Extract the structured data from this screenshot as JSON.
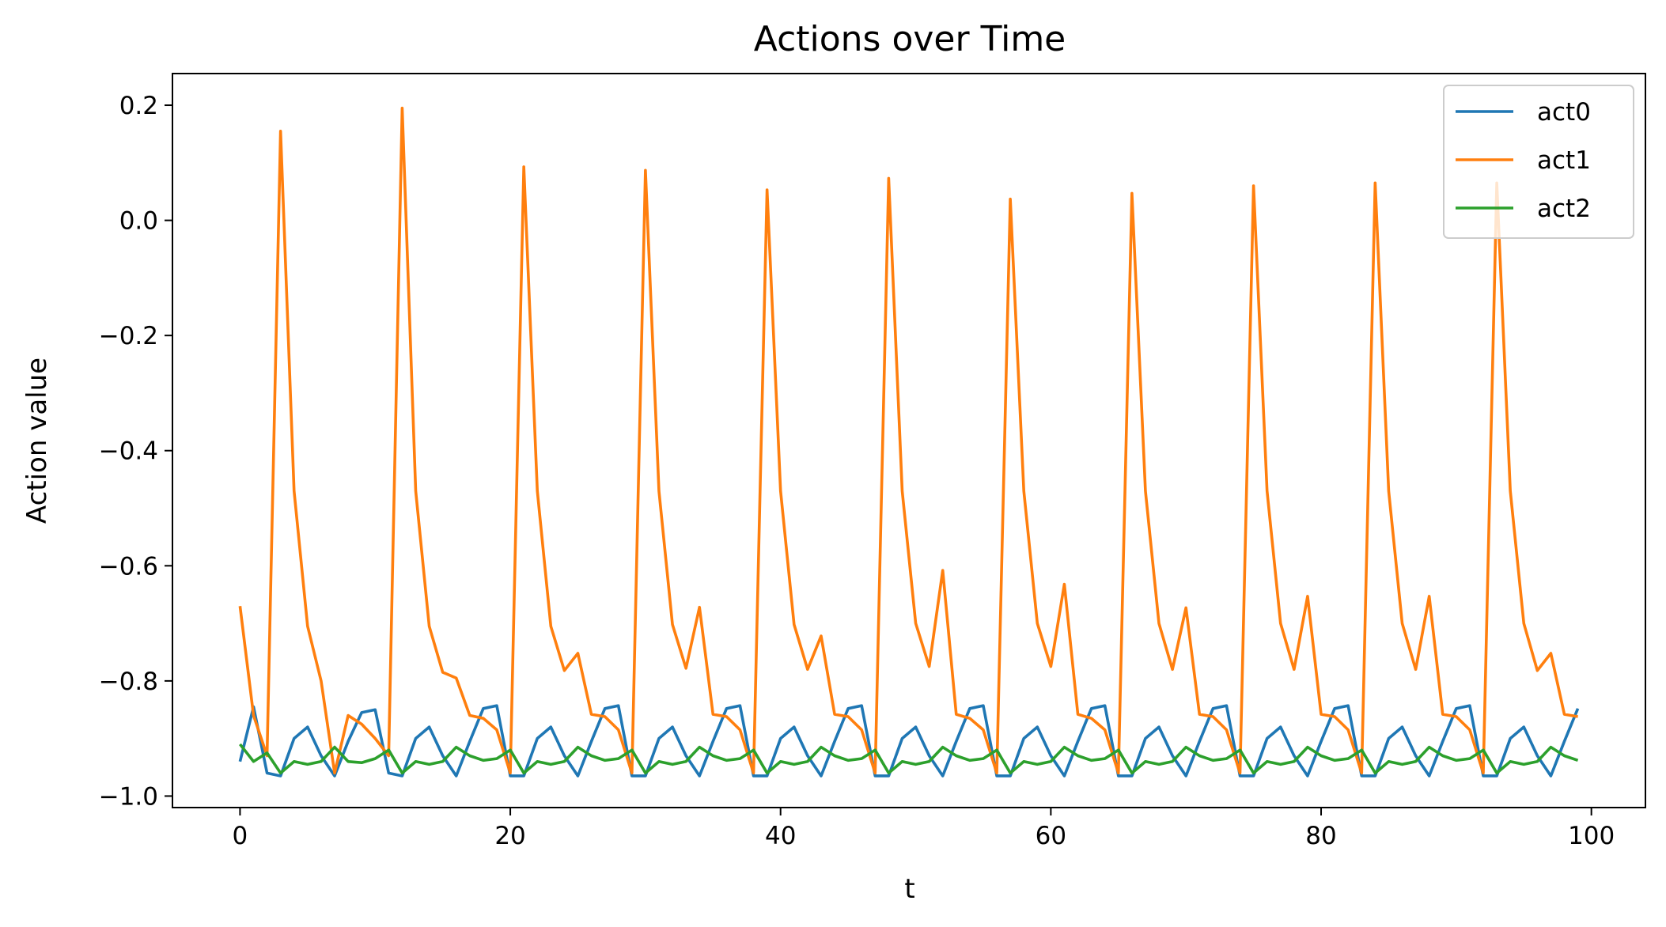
{
  "chart_data": {
    "type": "line",
    "title": "Actions over Time",
    "xlabel": "t",
    "ylabel": "Action value",
    "xlim": [
      -5,
      104
    ],
    "ylim": [
      -1.02,
      0.255
    ],
    "xticks": [
      0,
      20,
      40,
      60,
      80,
      100
    ],
    "yticks": [
      0.2,
      0.0,
      -0.2,
      -0.4,
      -0.6,
      -0.8,
      -1.0
    ],
    "xtick_labels": [
      "0",
      "20",
      "40",
      "60",
      "80",
      "100"
    ],
    "ytick_labels": [
      "0.2",
      "0.0",
      "−0.2",
      "−0.4",
      "−0.6",
      "−0.8",
      "−1.0"
    ],
    "legend_position": "top-right",
    "grid": false,
    "series": [
      {
        "name": "act0",
        "color": "#1f77b4",
        "values": [
          -0.94,
          -0.845,
          -0.96,
          -0.965,
          -0.9,
          -0.88,
          -0.93,
          -0.965,
          -0.905,
          -0.855,
          -0.85,
          -0.96,
          -0.965,
          -0.9,
          -0.88,
          -0.93,
          -0.965,
          -0.905,
          -0.848,
          -0.843,
          -0.965,
          -0.965,
          -0.9,
          -0.88,
          -0.93,
          -0.965,
          -0.905,
          -0.848,
          -0.843,
          -0.965,
          -0.965,
          -0.9,
          -0.88,
          -0.93,
          -0.965,
          -0.905,
          -0.848,
          -0.843,
          -0.965,
          -0.965,
          -0.9,
          -0.88,
          -0.93,
          -0.965,
          -0.905,
          -0.848,
          -0.843,
          -0.965,
          -0.965,
          -0.9,
          -0.88,
          -0.93,
          -0.965,
          -0.905,
          -0.848,
          -0.843,
          -0.965,
          -0.965,
          -0.9,
          -0.88,
          -0.93,
          -0.965,
          -0.905,
          -0.848,
          -0.843,
          -0.965,
          -0.965,
          -0.9,
          -0.88,
          -0.93,
          -0.965,
          -0.905,
          -0.848,
          -0.843,
          -0.965,
          -0.965,
          -0.9,
          -0.88,
          -0.93,
          -0.965,
          -0.905,
          -0.848,
          -0.843,
          -0.965,
          -0.965,
          -0.9,
          -0.88,
          -0.93,
          -0.965,
          -0.905,
          -0.848,
          -0.843,
          -0.965,
          -0.965,
          -0.9,
          -0.88,
          -0.93,
          -0.965,
          -0.905,
          -0.848
        ]
      },
      {
        "name": "act1",
        "color": "#ff7f0e",
        "values": [
          -0.67,
          -0.86,
          -0.93,
          0.155,
          -0.47,
          -0.705,
          -0.8,
          -0.96,
          -0.86,
          -0.875,
          -0.9,
          -0.93,
          0.195,
          -0.47,
          -0.705,
          -0.785,
          -0.795,
          -0.86,
          -0.865,
          -0.885,
          -0.96,
          0.093,
          -0.47,
          -0.705,
          -0.782,
          -0.752,
          -0.858,
          -0.862,
          -0.885,
          -0.96,
          0.087,
          -0.47,
          -0.702,
          -0.778,
          -0.672,
          -0.858,
          -0.862,
          -0.885,
          -0.96,
          0.053,
          -0.47,
          -0.702,
          -0.78,
          -0.722,
          -0.858,
          -0.862,
          -0.885,
          -0.96,
          0.073,
          -0.47,
          -0.7,
          -0.775,
          -0.608,
          -0.858,
          -0.865,
          -0.885,
          -0.96,
          0.037,
          -0.47,
          -0.7,
          -0.775,
          -0.632,
          -0.858,
          -0.865,
          -0.885,
          -0.96,
          0.047,
          -0.47,
          -0.7,
          -0.78,
          -0.673,
          -0.858,
          -0.862,
          -0.885,
          -0.96,
          0.06,
          -0.47,
          -0.7,
          -0.78,
          -0.653,
          -0.858,
          -0.862,
          -0.885,
          -0.96,
          0.065,
          -0.47,
          -0.7,
          -0.78,
          -0.653,
          -0.858,
          -0.862,
          -0.885,
          -0.96,
          0.065,
          -0.47,
          -0.7,
          -0.782,
          -0.752,
          -0.858,
          -0.862
        ]
      },
      {
        "name": "act2",
        "color": "#2ca02c",
        "values": [
          -0.91,
          -0.94,
          -0.925,
          -0.96,
          -0.94,
          -0.945,
          -0.94,
          -0.915,
          -0.94,
          -0.942,
          -0.935,
          -0.92,
          -0.96,
          -0.94,
          -0.945,
          -0.94,
          -0.915,
          -0.93,
          -0.938,
          -0.935,
          -0.92,
          -0.96,
          -0.94,
          -0.945,
          -0.94,
          -0.915,
          -0.93,
          -0.938,
          -0.935,
          -0.92,
          -0.96,
          -0.94,
          -0.945,
          -0.94,
          -0.915,
          -0.93,
          -0.938,
          -0.935,
          -0.92,
          -0.96,
          -0.94,
          -0.945,
          -0.94,
          -0.915,
          -0.93,
          -0.938,
          -0.935,
          -0.92,
          -0.96,
          -0.94,
          -0.945,
          -0.94,
          -0.915,
          -0.93,
          -0.938,
          -0.935,
          -0.92,
          -0.96,
          -0.94,
          -0.945,
          -0.94,
          -0.915,
          -0.93,
          -0.938,
          -0.935,
          -0.92,
          -0.96,
          -0.94,
          -0.945,
          -0.94,
          -0.915,
          -0.93,
          -0.938,
          -0.935,
          -0.92,
          -0.96,
          -0.94,
          -0.945,
          -0.94,
          -0.915,
          -0.93,
          -0.938,
          -0.935,
          -0.92,
          -0.96,
          -0.94,
          -0.945,
          -0.94,
          -0.915,
          -0.93,
          -0.938,
          -0.935,
          -0.92,
          -0.96,
          -0.94,
          -0.945,
          -0.94,
          -0.915,
          -0.93,
          -0.938
        ]
      }
    ]
  }
}
